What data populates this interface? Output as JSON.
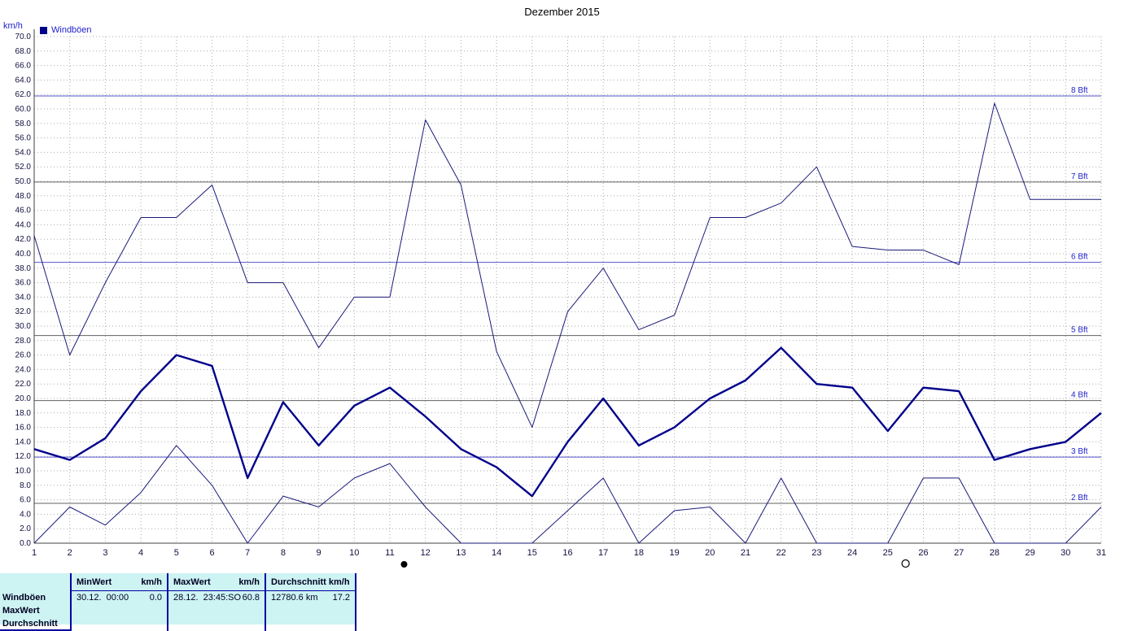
{
  "title": "Dezember 2015",
  "legend": {
    "label": "Windböen",
    "color": "#00008b"
  },
  "chart_data": {
    "type": "line",
    "title": "Dezember 2015",
    "xlabel": "",
    "ylabel": "km/h",
    "ylim": [
      0,
      70
    ],
    "ytick_step": 2,
    "grid": true,
    "legend_position": "top-left",
    "x": [
      1,
      2,
      3,
      4,
      5,
      6,
      7,
      8,
      9,
      10,
      11,
      12,
      13,
      14,
      15,
      16,
      17,
      18,
      19,
      20,
      21,
      22,
      23,
      24,
      25,
      26,
      27,
      28,
      29,
      30,
      31
    ],
    "series": [
      {
        "name": "max-line",
        "color": "#1a1a7a",
        "width": 1,
        "values": [
          42.5,
          26,
          36,
          45,
          45,
          49.5,
          36,
          36,
          27,
          34,
          34,
          58.5,
          49.5,
          26.5,
          16,
          32,
          38,
          29.5,
          31.5,
          45,
          45,
          47,
          52,
          41,
          40.5,
          40.5,
          38.5,
          60.8,
          47.5,
          47.5,
          47.5
        ]
      },
      {
        "name": "min-line",
        "color": "#1a1a7a",
        "width": 1,
        "values": [
          0,
          5,
          2.5,
          7,
          13.5,
          8,
          0,
          6.5,
          5,
          9,
          11,
          5,
          0,
          0,
          0,
          4.5,
          9,
          0,
          4.5,
          5,
          0,
          9,
          0,
          0,
          0,
          9,
          9,
          0,
          0,
          0,
          5
        ]
      },
      {
        "name": "windboeen",
        "color": "#00008b",
        "width": 2.4,
        "values": [
          13,
          11.5,
          14.5,
          21,
          26,
          24.5,
          9,
          19.5,
          13.5,
          19,
          21.5,
          17.5,
          13,
          10.5,
          6.5,
          14,
          20,
          13.5,
          16,
          20,
          22.5,
          27,
          22,
          21.5,
          15.5,
          21.5,
          21,
          11.5,
          13,
          14,
          18
        ]
      }
    ],
    "beaufort_lines": [
      {
        "label": "2 Bft",
        "value": 5.5,
        "color": "#606060"
      },
      {
        "label": "3 Bft",
        "value": 11.9,
        "color": "#5555cc"
      },
      {
        "label": "4 Bft",
        "value": 19.7,
        "color": "#606060"
      },
      {
        "label": "5 Bft",
        "value": 28.7,
        "color": "#606060"
      },
      {
        "label": "6 Bft",
        "value": 38.8,
        "color": "#5555cc"
      },
      {
        "label": "7 Bft",
        "value": 49.9,
        "color": "#606060"
      },
      {
        "label": "8 Bft",
        "value": 61.8,
        "color": "#5555cc"
      }
    ],
    "moon_markers": [
      {
        "x": 11.4,
        "symbol": "new-moon"
      },
      {
        "x": 25.5,
        "symbol": "full-moon"
      }
    ],
    "colors": {
      "grid": "#aaaaaa",
      "axis": "#404040",
      "tick_label": "#101040",
      "bft_label": "#2222cc"
    }
  },
  "table": {
    "headers": {
      "min_label": "MinWert",
      "min_unit": "km/h",
      "max_label": "MaxWert",
      "max_unit": "km/h",
      "avg_label": "Durchschnitt km/h"
    },
    "rows": [
      {
        "label": "Windböen",
        "min_date": "30.12.",
        "min_time": "00:00",
        "min_value": "0.0",
        "max_date": "28.12.",
        "max_time": "23:45:SO",
        "max_value": "60.8",
        "wind_run": "12780.6 km",
        "avg_value": "17.2"
      },
      {
        "label": "MaxWert"
      },
      {
        "label": "Durchschnitt"
      }
    ]
  }
}
